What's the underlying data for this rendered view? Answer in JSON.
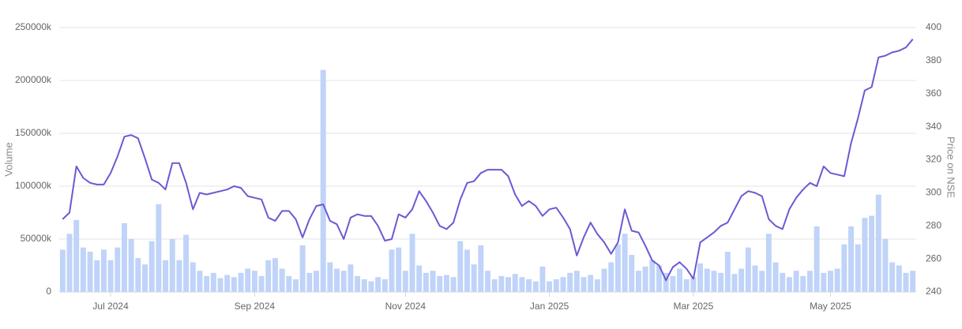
{
  "chart_data": {
    "type": "combo",
    "ylabel": "Volume",
    "y2label": "Price on NSE",
    "categories": [
      null,
      null,
      null,
      null,
      null,
      null,
      null,
      "Jul 2024",
      null,
      null,
      null,
      null,
      null,
      null,
      null,
      null,
      null,
      null,
      null,
      null,
      null,
      null,
      null,
      null,
      null,
      null,
      null,
      null,
      "Sep 2024",
      null,
      null,
      null,
      null,
      null,
      null,
      null,
      null,
      null,
      null,
      null,
      null,
      null,
      null,
      null,
      null,
      null,
      null,
      null,
      null,
      null,
      "Nov 2024",
      null,
      null,
      null,
      null,
      null,
      null,
      null,
      null,
      null,
      null,
      null,
      null,
      null,
      null,
      null,
      null,
      null,
      null,
      null,
      null,
      "Jan 2025",
      null,
      null,
      null,
      null,
      null,
      null,
      null,
      null,
      null,
      null,
      null,
      null,
      null,
      null,
      null,
      null,
      null,
      null,
      null,
      null,
      "Mar 2025",
      null,
      null,
      null,
      null,
      null,
      null,
      null,
      null,
      null,
      null,
      null,
      null,
      null,
      null,
      null,
      null,
      null,
      null,
      null,
      "May 2025",
      null,
      null,
      null,
      null,
      null,
      null,
      null,
      null,
      null,
      null,
      null,
      null
    ],
    "series": [
      {
        "type": "bar",
        "color": "#c0d3f8",
        "values": [
          40000,
          55000,
          68000,
          42000,
          38000,
          30000,
          40000,
          30000,
          42000,
          65000,
          50000,
          32000,
          26000,
          48000,
          83000,
          30000,
          50000,
          30000,
          54000,
          28000,
          20000,
          15000,
          18000,
          13000,
          16000,
          14000,
          18000,
          22000,
          20000,
          15000,
          30000,
          32000,
          22000,
          15000,
          12000,
          44000,
          18000,
          20000,
          210000,
          28000,
          22000,
          20000,
          26000,
          15000,
          12000,
          10000,
          14000,
          12000,
          40000,
          42000,
          20000,
          55000,
          25000,
          18000,
          20000,
          15000,
          16000,
          14000,
          48000,
          40000,
          26000,
          44000,
          20000,
          12000,
          15000,
          14000,
          17000,
          14000,
          12000,
          10000,
          24000,
          10000,
          12000,
          14000,
          18000,
          20000,
          14000,
          16000,
          12000,
          22000,
          28000,
          45000,
          55000,
          35000,
          20000,
          24000,
          30000,
          25000,
          18000,
          15000,
          22000,
          12000,
          14000,
          27000,
          22000,
          20000,
          18000,
          38000,
          17000,
          22000,
          42000,
          25000,
          20000,
          55000,
          28000,
          18000,
          14000,
          20000,
          15000,
          20000,
          62000,
          18000,
          20000,
          22000,
          45000,
          62000,
          45000,
          70000,
          72000,
          92000,
          50000,
          28000,
          25000,
          18000,
          20000
        ]
      },
      {
        "type": "line",
        "axis": "y2",
        "color": "#6a5ad4",
        "values": [
          284,
          288,
          316,
          309,
          306,
          305,
          305,
          312,
          322,
          334,
          335,
          333,
          321,
          308,
          306,
          302,
          318,
          318,
          306,
          290,
          300,
          299,
          300,
          301,
          302,
          304,
          303,
          298,
          297,
          296,
          285,
          283,
          289,
          289,
          284,
          273,
          284,
          292,
          293,
          283,
          281,
          272,
          285,
          287,
          286,
          286,
          280,
          271,
          272,
          287,
          285,
          290,
          301,
          295,
          288,
          280,
          278,
          282,
          296,
          306,
          307,
          312,
          314,
          314,
          314,
          310,
          299,
          292,
          295,
          292,
          286,
          290,
          291,
          285,
          278,
          262,
          273,
          282,
          275,
          270,
          263,
          270,
          290,
          277,
          276,
          268,
          259,
          256,
          247,
          255,
          258,
          254,
          248,
          270,
          273,
          276,
          280,
          282,
          290,
          298,
          301,
          300,
          298,
          284,
          280,
          278,
          290,
          297,
          302,
          306,
          304,
          316,
          312,
          311,
          310,
          330,
          345,
          362,
          364,
          382,
          383,
          385,
          386,
          388,
          393
        ]
      }
    ],
    "ylim": [
      0,
      250000
    ],
    "yticks": [
      0,
      {
        "value": 50000,
        "label": "50000k"
      },
      {
        "value": 100000,
        "label": "100000k"
      },
      {
        "value": 150000,
        "label": "150000k"
      },
      {
        "value": 200000,
        "label": "200000k"
      },
      {
        "value": 250000,
        "label": "250000k"
      }
    ],
    "y2lim": [
      240,
      400
    ],
    "y2ticks": [
      240,
      260,
      280,
      300,
      320,
      340,
      360,
      380,
      400
    ],
    "grid": true
  }
}
